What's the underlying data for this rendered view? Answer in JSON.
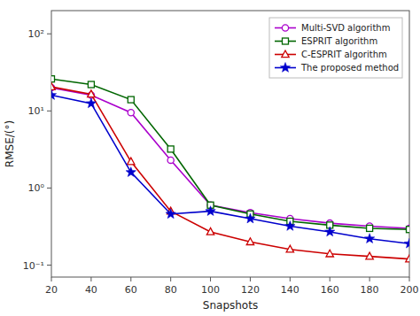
{
  "chart_data": {
    "type": "line",
    "x_label": "Snapshots",
    "y_label": "RMSE/(°)",
    "x": [
      20,
      40,
      60,
      80,
      100,
      120,
      140,
      160,
      180,
      200
    ],
    "series": [
      {
        "name": "Multi-SVD algorithm",
        "color": "#AA00CC",
        "marker": "circle",
        "values": [
          20.0,
          16.0,
          9.5,
          2.3,
          0.6,
          0.48,
          0.4,
          0.35,
          0.32,
          0.3
        ]
      },
      {
        "name": "ESPRIT algorithm",
        "color": "#006600",
        "marker": "square",
        "values": [
          26.0,
          22.0,
          14.0,
          3.2,
          0.6,
          0.46,
          0.37,
          0.33,
          0.3,
          0.29
        ]
      },
      {
        "name": "C-ESPRIT algorithm",
        "color": "#CC0000",
        "marker": "triangle",
        "values": [
          20.5,
          16.5,
          2.2,
          0.5,
          0.27,
          0.2,
          0.16,
          0.14,
          0.13,
          0.12
        ]
      },
      {
        "name": "The proposed method",
        "color": "#0000CC",
        "marker": "star",
        "values": [
          16.0,
          12.5,
          1.6,
          0.46,
          0.5,
          0.4,
          0.32,
          0.27,
          0.22,
          0.19
        ]
      }
    ],
    "xlim": [
      20,
      200
    ],
    "xticks": [
      20,
      40,
      60,
      80,
      100,
      120,
      140,
      160,
      180,
      200
    ],
    "ylim": [
      0.07,
      200
    ],
    "yticks": [
      {
        "value": 0.1,
        "label": "10⁻¹"
      },
      {
        "value": 1,
        "label": "10⁰"
      },
      {
        "value": 10,
        "label": "10¹"
      },
      {
        "value": 100,
        "label": "10²"
      }
    ],
    "log": "y",
    "grid": false,
    "legend": "upper-right"
  }
}
